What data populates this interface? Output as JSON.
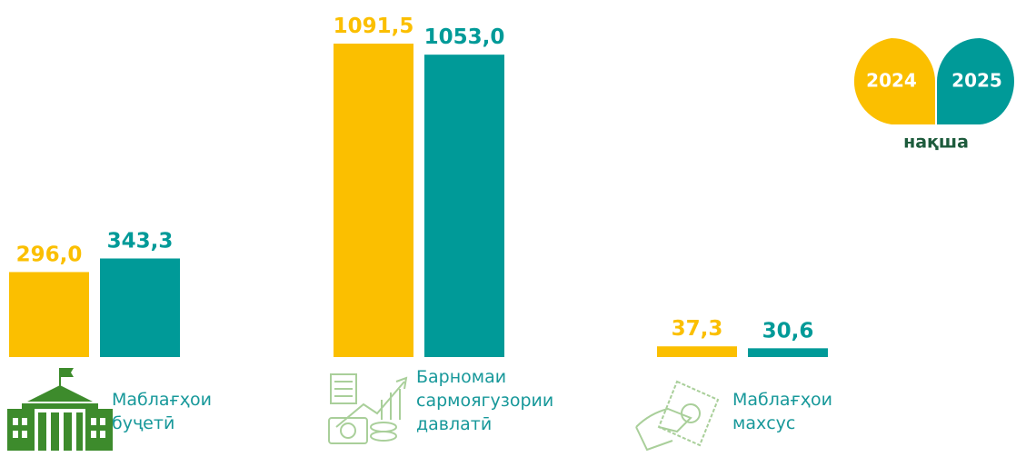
{
  "chart_data": {
    "type": "bar",
    "categories": [
      "Маблағҳои буҷетӣ",
      "Барномаи сармоягузории давлатӣ",
      "Маблағҳои махсус"
    ],
    "series": [
      {
        "name": "2024",
        "color": "#fbbf00",
        "values": [
          296.0,
          1091.5,
          37.3
        ],
        "value_labels": [
          "296,0",
          "1091,5",
          "37,3"
        ]
      },
      {
        "name": "2025",
        "color": "#009a98",
        "values": [
          343.3,
          1053.0,
          30.6
        ],
        "value_labels": [
          "343,3",
          "1053,0",
          "30,6"
        ]
      }
    ],
    "legend_note": "нақша"
  }
}
